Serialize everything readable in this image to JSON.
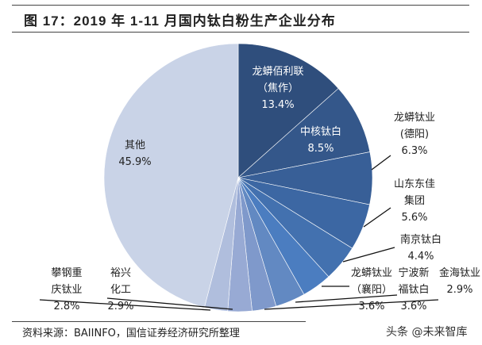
{
  "title": "图 17：2019 年 1-11 月国内钛白粉生产企业分布",
  "source": "资料来源：BAIINFO，国信证券经济研究所整理",
  "watermark": "头条 @未来智库",
  "chart_data": {
    "type": "pie",
    "title": "图 17：2019 年 1-11 月国内钛白粉生产企业分布",
    "start": "12 o'clock, clockwise",
    "slices": [
      {
        "label": [
          "龙蟒佰利联",
          "（焦作）"
        ],
        "value": 13.4,
        "value_label": "13.4%",
        "color": "#2F4E7C"
      },
      {
        "label": [
          "中核钛白"
        ],
        "value": 8.5,
        "value_label": "8.5%",
        "color": "#34578A"
      },
      {
        "label": [
          "龙蟒钛业",
          "(德阳)"
        ],
        "value": 6.3,
        "value_label": "6.3%",
        "color": "#385F97"
      },
      {
        "label": [
          "山东东佳",
          "集团"
        ],
        "value": 5.6,
        "value_label": "5.6%",
        "color": "#3C67A3"
      },
      {
        "label": [
          "南京钛白"
        ],
        "value": 4.4,
        "value_label": "4.4%",
        "color": "#4371AF"
      },
      {
        "label": [
          "龙蟒钛业",
          "（襄阳）"
        ],
        "value": 3.6,
        "value_label": "3.6%",
        "color": "#4B7DC0"
      },
      {
        "label": [
          "宁波新",
          "福钛白"
        ],
        "value": 3.6,
        "value_label": "3.6%",
        "color": "#6289C2"
      },
      {
        "label": [
          "金海钛业"
        ],
        "value": 2.9,
        "value_label": "2.9%",
        "color": "#7F99CB"
      },
      {
        "label": [
          "裕兴",
          "化工"
        ],
        "value": 2.9,
        "value_label": "2.9%",
        "color": "#98AAD4"
      },
      {
        "label": [
          "攀钢重",
          "庆钛业"
        ],
        "value": 2.8,
        "value_label": "2.8%",
        "color": "#B0BEDD"
      },
      {
        "label": [
          "其他"
        ],
        "value": 45.9,
        "value_label": "45.9%",
        "color": "#C9D3E7"
      }
    ]
  }
}
